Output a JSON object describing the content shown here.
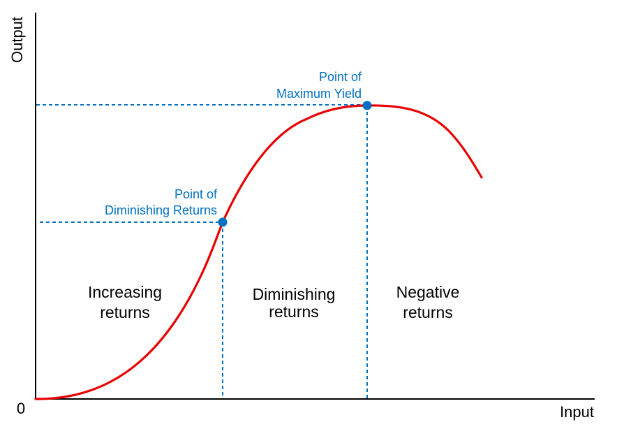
{
  "axes": {
    "x_label": "Input",
    "y_label": "Output",
    "origin_label": "0"
  },
  "regions": {
    "increasing": {
      "line1": "Increasing",
      "line2": "returns"
    },
    "diminishing": {
      "line1": "Diminishing",
      "line2": "returns"
    },
    "negative": {
      "line1": "Negative",
      "line2": "returns"
    }
  },
  "points": {
    "diminishing_returns": {
      "line1": "Point of",
      "line2": "Diminishing Returns"
    },
    "maximum_yield": {
      "line1": "Point of",
      "line2": "Maximum Yield"
    }
  },
  "colors": {
    "curve": "#e80000",
    "guide": "#0070c0",
    "point": "#0070c0",
    "point_label": "#0070c0",
    "axis": "#000000"
  }
}
